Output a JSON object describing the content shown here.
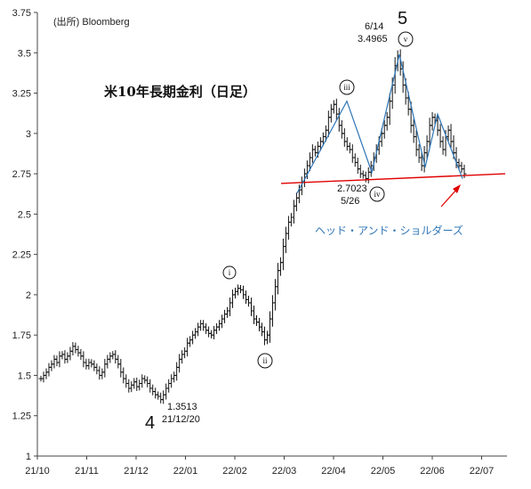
{
  "chart_data": {
    "type": "ohlc",
    "title": "米10年長期金利（日足）",
    "source": "(出所)  Bloomberg",
    "ylim": [
      1,
      3.75
    ],
    "y_ticks": [
      "1",
      "1.25",
      "1.5",
      "1.75",
      "2",
      "2.25",
      "2.5",
      "2.75",
      "3",
      "3.25",
      "3.5",
      "3.75"
    ],
    "x_ticks": [
      "21/10",
      "21/11",
      "21/12",
      "22/01",
      "22/02",
      "22/03",
      "22/04",
      "22/05",
      "22/06",
      "22/07"
    ],
    "series": [
      {
        "values": [
          1.48,
          1.5,
          1.52,
          1.55,
          1.57,
          1.6,
          1.58,
          1.62,
          1.63,
          1.6,
          1.62,
          1.65,
          1.68,
          1.66,
          1.64,
          1.62,
          1.58,
          1.56,
          1.58,
          1.57,
          1.55,
          1.53,
          1.5,
          1.52,
          1.57,
          1.6,
          1.62,
          1.63,
          1.6,
          1.57,
          1.52,
          1.48,
          1.45,
          1.42,
          1.44,
          1.46,
          1.43,
          1.45,
          1.48,
          1.47,
          1.45,
          1.42,
          1.4,
          1.38,
          1.37,
          1.35,
          1.38,
          1.42,
          1.45,
          1.48,
          1.5,
          1.55,
          1.6,
          1.63,
          1.65,
          1.7,
          1.72,
          1.75,
          1.77,
          1.8,
          1.82,
          1.8,
          1.78,
          1.76,
          1.75,
          1.78,
          1.8,
          1.82,
          1.85,
          1.88,
          1.9,
          1.95,
          2.0,
          2.02,
          2.04,
          2.03,
          2.0,
          1.97,
          1.95,
          1.9,
          1.85,
          1.83,
          1.8,
          1.77,
          1.72,
          1.75,
          1.85,
          1.95,
          2.05,
          2.15,
          2.2,
          2.3,
          2.38,
          2.45,
          2.48,
          2.55,
          2.6,
          2.65,
          2.7,
          2.75,
          2.8,
          2.85,
          2.9,
          2.88,
          2.92,
          2.95,
          2.98,
          3.02,
          3.1,
          3.15,
          3.18,
          3.12,
          3.05,
          3.0,
          2.95,
          2.92,
          2.9,
          2.85,
          2.82,
          2.78,
          2.75,
          2.74,
          2.72,
          2.76,
          2.8,
          2.85,
          2.9,
          2.95,
          3.0,
          3.05,
          3.1,
          3.2,
          3.3,
          3.42,
          3.48,
          3.4,
          3.3,
          3.22,
          3.15,
          3.05,
          2.98,
          2.9,
          2.85,
          2.8,
          2.88,
          2.95,
          3.05,
          3.1,
          3.08,
          3.02,
          2.95,
          2.9,
          2.98,
          3.02,
          2.95,
          2.88,
          2.82,
          2.8,
          2.78,
          2.75
        ],
        "color": "#111111"
      }
    ],
    "wave_points": [
      {
        "label": "4",
        "date": "21/12/20",
        "value": 1.3513,
        "value_label": "1.3513"
      },
      {
        "label": "i",
        "value": 2.06
      },
      {
        "label": "ii",
        "value": 1.7
      },
      {
        "label": "iii",
        "value": 3.2
      },
      {
        "label": "iv",
        "date": "5/26",
        "value": 2.7023,
        "value_label": "2.7023"
      },
      {
        "label": "5",
        "wave_label": "v",
        "date": "6/14",
        "value": 3.4965,
        "value_label": "3.4965"
      }
    ],
    "neckline": {
      "start": 2.69,
      "end": 2.75,
      "color": "#e00000"
    },
    "pattern_label": "ヘッド・アンド・ショルダーズ",
    "colors": {
      "wave_line": "#2e75b6",
      "neckline": "#e00000",
      "arrow": "#e00000",
      "pattern_label": "#2e75b6"
    }
  }
}
